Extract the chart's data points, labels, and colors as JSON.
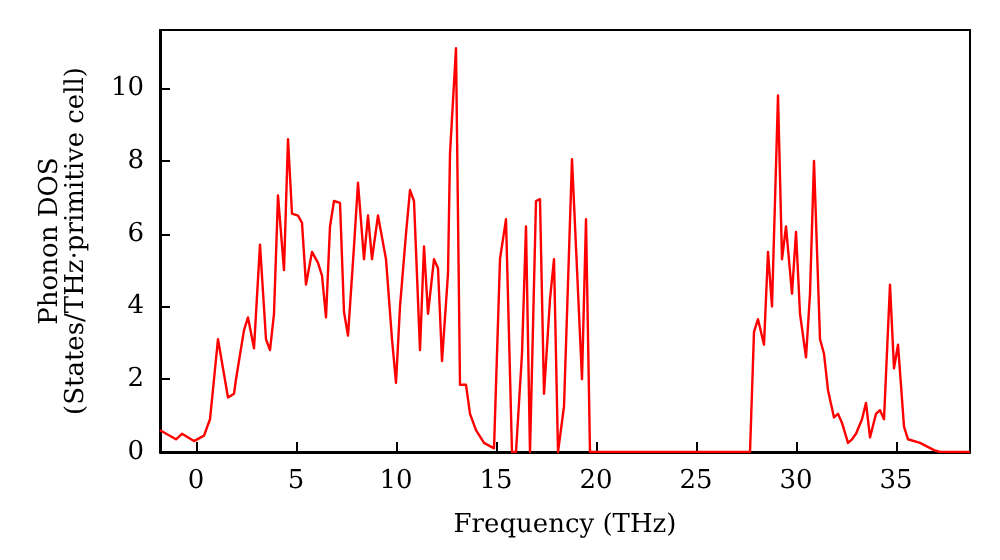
{
  "chart_data": {
    "type": "line",
    "xlabel": "Frequency (THz)",
    "ylabel": "Phonon DOS\n(States/THz·primitive cell)",
    "series": [
      {
        "color": "#ff0000",
        "x": [
          -1.8,
          -1,
          -0.7,
          -0.1,
          0.4,
          0.7,
          1.1,
          1.6,
          1.9,
          2.0,
          2.4,
          2.6,
          2.9,
          3.2,
          3.5,
          3.7,
          3.9,
          4.1,
          4.4,
          4.6,
          4.8,
          5.1,
          5.3,
          5.5,
          5.8,
          6.1,
          6.3,
          6.5,
          6.7,
          6.9,
          7.2,
          7.4,
          7.6,
          7.9,
          8.1,
          8.4,
          8.6,
          8.8,
          9.1,
          9.3,
          9.5,
          9.8,
          10.0,
          10.2,
          10.5,
          10.7,
          10.9,
          11.2,
          11.4,
          11.6,
          11.9,
          12.1,
          12.3,
          12.6,
          12.7,
          13.0,
          13.2,
          13.5,
          13.7,
          14.0,
          14.4,
          14.9,
          15.2,
          15.5,
          15.8,
          16.0,
          16.3,
          16.5,
          16.7,
          17.0,
          17.2,
          17.4,
          17.7,
          17.9,
          18.1,
          18.4,
          18.8,
          19.3,
          19.5,
          19.7,
          27.7,
          27.9,
          28.1,
          28.4,
          28.6,
          28.8,
          29.1,
          29.3,
          29.5,
          29.8,
          30.0,
          30.2,
          30.5,
          30.7,
          30.9,
          31.2,
          31.4,
          31.6,
          31.9,
          32.1,
          32.3,
          32.6,
          32.8,
          33.0,
          33.3,
          33.5,
          33.7,
          34.0,
          34.2,
          34.4,
          34.7,
          34.9,
          35.1,
          35.4,
          35.6,
          36.2,
          36.9,
          37.2,
          38.7
        ],
        "values": [
          0.6,
          0.35,
          0.5,
          0.3,
          0.45,
          0.9,
          3.1,
          1.5,
          1.6,
          2.0,
          3.35,
          3.7,
          2.85,
          5.7,
          3.1,
          2.8,
          3.8,
          7.05,
          5.0,
          8.6,
          6.55,
          6.5,
          6.3,
          4.6,
          5.5,
          5.2,
          4.85,
          3.7,
          6.2,
          6.9,
          6.85,
          3.85,
          3.2,
          5.65,
          7.4,
          5.3,
          6.5,
          5.3,
          6.5,
          5.9,
          5.3,
          3.1,
          1.9,
          4.0,
          6.0,
          7.2,
          6.9,
          2.8,
          5.65,
          3.8,
          5.3,
          5.05,
          2.5,
          4.9,
          8.2,
          11.1,
          1.85,
          1.85,
          1.05,
          0.6,
          0.25,
          0.1,
          5.3,
          6.4,
          0,
          0,
          2.7,
          6.2,
          0,
          6.9,
          6.95,
          1.6,
          4.2,
          5.3,
          0,
          1.25,
          8.05,
          2.0,
          6.4,
          0,
          0,
          3.3,
          3.65,
          2.95,
          5.5,
          4.0,
          9.8,
          5.3,
          6.2,
          4.35,
          6.05,
          3.8,
          2.6,
          4.35,
          8.0,
          3.1,
          2.7,
          1.7,
          0.95,
          1.05,
          0.8,
          0.25,
          0.35,
          0.5,
          0.9,
          1.35,
          0.4,
          1.05,
          1.15,
          0.9,
          4.6,
          2.3,
          2.95,
          0.7,
          0.35,
          0.25,
          0.05,
          0,
          0
        ]
      }
    ],
    "xlim": [
      -1.8,
      38.7
    ],
    "xticks": [
      0,
      5,
      10,
      15,
      20,
      25,
      30,
      35
    ],
    "ylim": [
      0,
      11.6
    ],
    "yticks": [
      0,
      2,
      4,
      6,
      8,
      10
    ],
    "grid": false,
    "marker": "none",
    "line_style": "solid"
  }
}
